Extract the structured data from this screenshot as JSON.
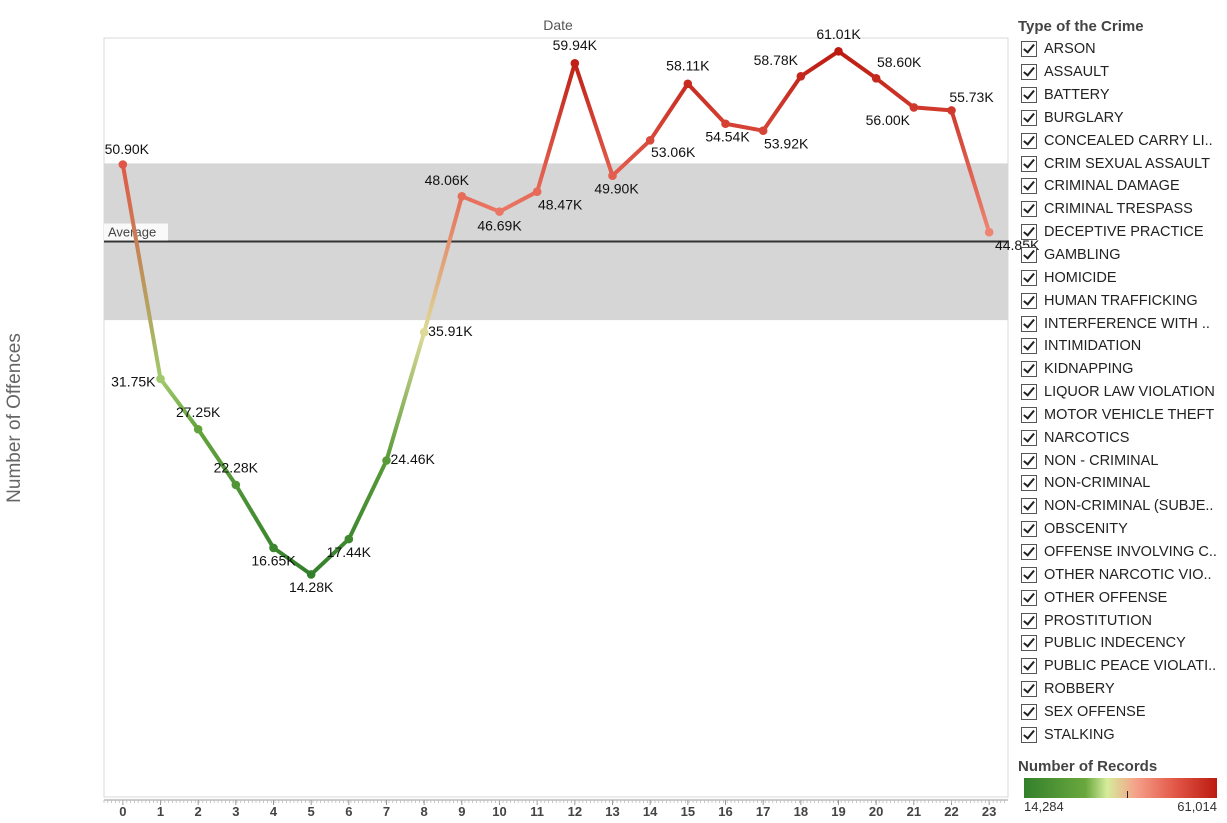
{
  "chart_data": {
    "type": "line",
    "title": "Date",
    "xlabel": "",
    "ylabel": "Number of Offences",
    "x": [
      0,
      1,
      2,
      3,
      4,
      5,
      6,
      7,
      8,
      9,
      10,
      11,
      12,
      13,
      14,
      15,
      16,
      17,
      18,
      19,
      20,
      21,
      22,
      23
    ],
    "values": [
      50900,
      31750,
      27250,
      22280,
      16650,
      14280,
      17440,
      24460,
      35910,
      48060,
      46690,
      48470,
      59940,
      49900,
      53060,
      58110,
      54540,
      53920,
      58780,
      61010,
      58600,
      56000,
      55730,
      44850
    ],
    "labels": [
      "50.90K",
      "31.75K",
      "27.25K",
      "22.28K",
      "16.65K",
      "14.28K",
      "17.44K",
      "24.46K",
      "35.91K",
      "48.06K",
      "46.69K",
      "48.47K",
      "59.94K",
      "49.90K",
      "53.06K",
      "58.11K",
      "54.54K",
      "53.92K",
      "58.78K",
      "61.01K",
      "58.60K",
      "56.00K",
      "55.73K",
      "44.85K"
    ],
    "average_label": "Average",
    "average_value": 44017,
    "band": [
      37000,
      51000
    ],
    "ylim": [
      -5600,
      62200
    ],
    "xlim": [
      -0.5,
      23.5
    ],
    "grid": false,
    "legend_placement": "right"
  },
  "legend": {
    "title": "Type of the Crime",
    "items": [
      "ARSON",
      "ASSAULT",
      "BATTERY",
      "BURGLARY",
      "CONCEALED CARRY LI..",
      "CRIM SEXUAL ASSAULT",
      "CRIMINAL DAMAGE",
      "CRIMINAL TRESPASS",
      "DECEPTIVE PRACTICE",
      "GAMBLING",
      "HOMICIDE",
      "HUMAN TRAFFICKING",
      "INTERFERENCE WITH ..",
      "INTIMIDATION",
      "KIDNAPPING",
      "LIQUOR LAW VIOLATION",
      "MOTOR VEHICLE THEFT",
      "NARCOTICS",
      "NON - CRIMINAL",
      "NON-CRIMINAL",
      "NON-CRIMINAL (SUBJE..",
      "OBSCENITY",
      "OFFENSE INVOLVING C..",
      "OTHER NARCOTIC VIO..",
      "OTHER OFFENSE",
      "PROSTITUTION",
      "PUBLIC INDECENCY",
      "PUBLIC PEACE VIOLATI..",
      "ROBBERY",
      "SEX OFFENSE",
      "STALKING"
    ]
  },
  "color_legend": {
    "title": "Number of Records",
    "min_label": "14,284",
    "max_label": "61,014",
    "colors": [
      "#33802c",
      "#d6ec9c",
      "#bc1a10"
    ]
  }
}
